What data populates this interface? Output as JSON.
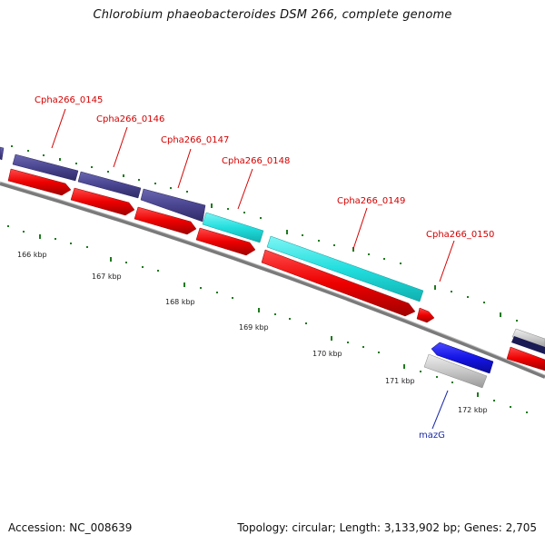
{
  "title": "Chlorobium phaeobacteroides DSM 266, complete genome",
  "footer": {
    "accession": "Accession: NC_008639",
    "summary": "Topology: circular; Length: 3,133,902 bp; Genes: 2,705"
  },
  "gene_labels": [
    {
      "text": "Cpha266_0145",
      "color": "#d40000"
    },
    {
      "text": "Cpha266_0146",
      "color": "#d40000"
    },
    {
      "text": "Cpha266_0147",
      "color": "#d40000"
    },
    {
      "text": "Cpha266_0148",
      "color": "#d40000"
    },
    {
      "text": "Cpha266_0149",
      "color": "#d40000"
    },
    {
      "text": "Cpha266_0150",
      "color": "#d40000"
    },
    {
      "text": "mazG",
      "color": "#1a2aa8"
    }
  ],
  "kbp_ticks": [
    "166 kbp",
    "167 kbp",
    "168 kbp",
    "169 kbp",
    "170 kbp",
    "171 kbp",
    "172 kbp"
  ],
  "colors": {
    "cds": "#ee0000",
    "purple_gene": "#4a4590",
    "cyan_gene": "#22dede",
    "blue_gene": "#1414e6",
    "grey_gene": "#bfbfbf",
    "backbone": "#7a7a7a",
    "tick_green": "#1e7a1e"
  }
}
